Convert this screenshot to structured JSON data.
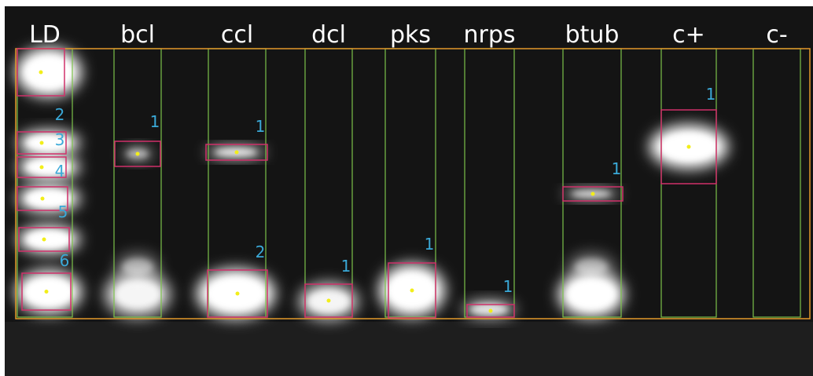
{
  "lanes": [
    {
      "label": "LD",
      "bands": [
        2,
        3,
        4,
        5,
        6
      ]
    },
    {
      "label": "bcl",
      "bands": [
        1
      ]
    },
    {
      "label": "ccl",
      "bands": [
        1,
        2
      ]
    },
    {
      "label": "dcl",
      "bands": [
        1
      ]
    },
    {
      "label": "pks",
      "bands": [
        1
      ]
    },
    {
      "label": "nrps",
      "bands": [
        1
      ]
    },
    {
      "label": "btub",
      "bands": [
        1
      ]
    },
    {
      "label": "c+",
      "bands": [
        1
      ]
    },
    {
      "label": "c-",
      "bands": []
    }
  ]
}
